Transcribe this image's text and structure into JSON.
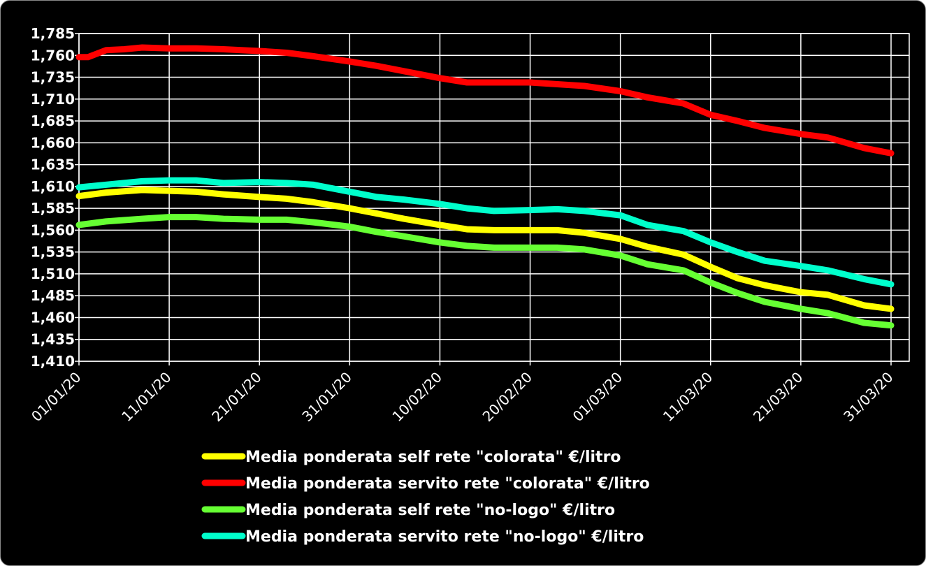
{
  "chart_data": {
    "type": "line",
    "title": "",
    "xlabel": "",
    "ylabel": "",
    "ylim": [
      1.41,
      1.785
    ],
    "y_ticks": [
      "1,785",
      "1,760",
      "1,735",
      "1,710",
      "1,685",
      "1,660",
      "1,635",
      "1,610",
      "1,585",
      "1,560",
      "1,535",
      "1,510",
      "1,485",
      "1,460",
      "1,435",
      "1,410"
    ],
    "y_tick_values": [
      1.785,
      1.76,
      1.735,
      1.71,
      1.685,
      1.66,
      1.635,
      1.61,
      1.585,
      1.56,
      1.535,
      1.51,
      1.485,
      1.46,
      1.435,
      1.41
    ],
    "x_ticks": [
      "01/01/20",
      "11/01/20",
      "21/01/20",
      "31/01/20",
      "10/02/20",
      "20/02/20",
      "01/03/20",
      "11/03/20",
      "21/03/20",
      "31/03/20"
    ],
    "x_tick_values": [
      "2020-01-01",
      "2020-01-11",
      "2020-01-21",
      "2020-01-31",
      "2020-02-10",
      "2020-02-20",
      "2020-03-01",
      "2020-03-11",
      "2020-03-21",
      "2020-03-31"
    ],
    "grid": true,
    "legend_position": "bottom",
    "series": [
      {
        "name": "Media ponderata self rete \"colorata\" €/litro",
        "color": "#ffff00",
        "points": [
          [
            "2020-01-01",
            1.599
          ],
          [
            "2020-01-04",
            1.603
          ],
          [
            "2020-01-08",
            1.606
          ],
          [
            "2020-01-11",
            1.605
          ],
          [
            "2020-01-14",
            1.604
          ],
          [
            "2020-01-17",
            1.601
          ],
          [
            "2020-01-21",
            1.598
          ],
          [
            "2020-01-24",
            1.596
          ],
          [
            "2020-01-27",
            1.592
          ],
          [
            "2020-01-31",
            1.585
          ],
          [
            "2020-02-03",
            1.579
          ],
          [
            "2020-02-06",
            1.573
          ],
          [
            "2020-02-10",
            1.566
          ],
          [
            "2020-02-13",
            1.561
          ],
          [
            "2020-02-16",
            1.56
          ],
          [
            "2020-02-20",
            1.56
          ],
          [
            "2020-02-23",
            1.56
          ],
          [
            "2020-02-26",
            1.557
          ],
          [
            "2020-03-01",
            1.55
          ],
          [
            "2020-03-04",
            1.541
          ],
          [
            "2020-03-08",
            1.532
          ],
          [
            "2020-03-11",
            1.518
          ],
          [
            "2020-03-14",
            1.505
          ],
          [
            "2020-03-17",
            1.497
          ],
          [
            "2020-03-21",
            1.489
          ],
          [
            "2020-03-24",
            1.486
          ],
          [
            "2020-03-28",
            1.474
          ],
          [
            "2020-03-31",
            1.47
          ]
        ]
      },
      {
        "name": "Media ponderata servito rete \"colorata\" €/litro",
        "color": "#ff0000",
        "points": [
          [
            "2020-01-01",
            1.758
          ],
          [
            "2020-01-02",
            1.758
          ],
          [
            "2020-01-04",
            1.766
          ],
          [
            "2020-01-06",
            1.767
          ],
          [
            "2020-01-08",
            1.769
          ],
          [
            "2020-01-11",
            1.768
          ],
          [
            "2020-01-14",
            1.768
          ],
          [
            "2020-01-17",
            1.767
          ],
          [
            "2020-01-21",
            1.765
          ],
          [
            "2020-01-24",
            1.763
          ],
          [
            "2020-01-27",
            1.759
          ],
          [
            "2020-01-31",
            1.753
          ],
          [
            "2020-02-03",
            1.748
          ],
          [
            "2020-02-06",
            1.742
          ],
          [
            "2020-02-10",
            1.734
          ],
          [
            "2020-02-13",
            1.729
          ],
          [
            "2020-02-16",
            1.729
          ],
          [
            "2020-02-20",
            1.729
          ],
          [
            "2020-02-23",
            1.727
          ],
          [
            "2020-02-26",
            1.725
          ],
          [
            "2020-03-01",
            1.719
          ],
          [
            "2020-03-04",
            1.712
          ],
          [
            "2020-03-08",
            1.705
          ],
          [
            "2020-03-11",
            1.692
          ],
          [
            "2020-03-14",
            1.685
          ],
          [
            "2020-03-17",
            1.677
          ],
          [
            "2020-03-21",
            1.67
          ],
          [
            "2020-03-24",
            1.666
          ],
          [
            "2020-03-28",
            1.654
          ],
          [
            "2020-03-31",
            1.648
          ]
        ]
      },
      {
        "name": "Media ponderata self rete \"no-logo\" €/litro",
        "color": "#66ff33",
        "points": [
          [
            "2020-01-01",
            1.566
          ],
          [
            "2020-01-04",
            1.57
          ],
          [
            "2020-01-08",
            1.573
          ],
          [
            "2020-01-11",
            1.575
          ],
          [
            "2020-01-14",
            1.575
          ],
          [
            "2020-01-17",
            1.573
          ],
          [
            "2020-01-21",
            1.572
          ],
          [
            "2020-01-24",
            1.572
          ],
          [
            "2020-01-27",
            1.569
          ],
          [
            "2020-01-31",
            1.564
          ],
          [
            "2020-02-03",
            1.558
          ],
          [
            "2020-02-06",
            1.553
          ],
          [
            "2020-02-10",
            1.546
          ],
          [
            "2020-02-13",
            1.542
          ],
          [
            "2020-02-16",
            1.54
          ],
          [
            "2020-02-20",
            1.54
          ],
          [
            "2020-02-23",
            1.54
          ],
          [
            "2020-02-26",
            1.538
          ],
          [
            "2020-03-01",
            1.531
          ],
          [
            "2020-03-04",
            1.521
          ],
          [
            "2020-03-08",
            1.514
          ],
          [
            "2020-03-11",
            1.5
          ],
          [
            "2020-03-14",
            1.488
          ],
          [
            "2020-03-17",
            1.478
          ],
          [
            "2020-03-21",
            1.47
          ],
          [
            "2020-03-24",
            1.465
          ],
          [
            "2020-03-28",
            1.454
          ],
          [
            "2020-03-31",
            1.451
          ]
        ]
      },
      {
        "name": "Media ponderata servito rete \"no-logo\" €/litro",
        "color": "#00ffcc",
        "points": [
          [
            "2020-01-01",
            1.609
          ],
          [
            "2020-01-04",
            1.612
          ],
          [
            "2020-01-08",
            1.616
          ],
          [
            "2020-01-11",
            1.617
          ],
          [
            "2020-01-14",
            1.617
          ],
          [
            "2020-01-17",
            1.614
          ],
          [
            "2020-01-21",
            1.615
          ],
          [
            "2020-01-24",
            1.614
          ],
          [
            "2020-01-27",
            1.612
          ],
          [
            "2020-01-31",
            1.604
          ],
          [
            "2020-02-03",
            1.598
          ],
          [
            "2020-02-06",
            1.595
          ],
          [
            "2020-02-10",
            1.59
          ],
          [
            "2020-02-13",
            1.585
          ],
          [
            "2020-02-16",
            1.582
          ],
          [
            "2020-02-20",
            1.583
          ],
          [
            "2020-02-23",
            1.584
          ],
          [
            "2020-02-26",
            1.582
          ],
          [
            "2020-03-01",
            1.577
          ],
          [
            "2020-03-04",
            1.566
          ],
          [
            "2020-03-08",
            1.559
          ],
          [
            "2020-03-11",
            1.546
          ],
          [
            "2020-03-14",
            1.535
          ],
          [
            "2020-03-17",
            1.525
          ],
          [
            "2020-03-21",
            1.519
          ],
          [
            "2020-03-24",
            1.514
          ],
          [
            "2020-03-28",
            1.504
          ],
          [
            "2020-03-31",
            1.498
          ]
        ]
      }
    ]
  }
}
